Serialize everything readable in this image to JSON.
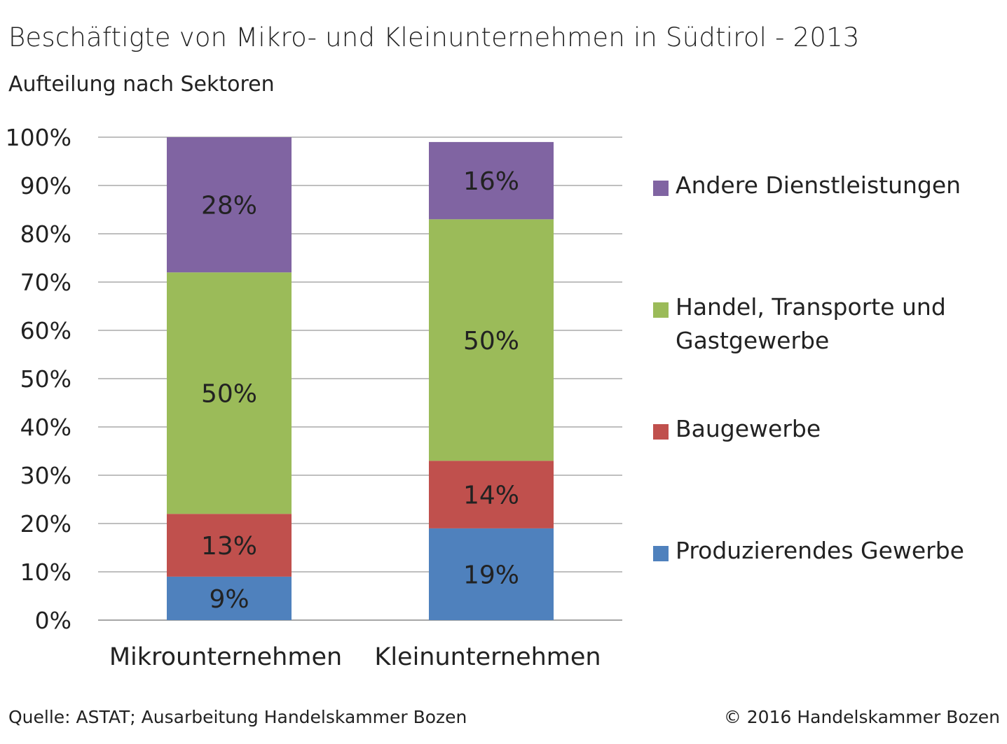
{
  "title": "Beschäftigte von Mikro- und Kleinunternehmen in Südtirol - 2013",
  "subtitle": "Aufteilung nach Sektoren",
  "footer": {
    "source": "Quelle: ASTAT; Ausarbeitung Handelskammer Bozen",
    "copyright": "© 2016 Handelskammer Bozen"
  },
  "chart_data": {
    "type": "bar",
    "stacked": true,
    "percent_stacked": true,
    "categories": [
      "Mikrounternehmen",
      "Kleinunternehmen"
    ],
    "series": [
      {
        "name": "Produzierendes Gewerbe",
        "values": [
          9,
          19
        ],
        "labels": [
          "9%",
          "19%"
        ],
        "color": "#4f81bd"
      },
      {
        "name": "Baugewerbe",
        "values": [
          13,
          14
        ],
        "labels": [
          "13%",
          "14%"
        ],
        "color": "#c0504d"
      },
      {
        "name": "Handel, Transporte und Gastgewerbe",
        "values": [
          50,
          50
        ],
        "labels": [
          "50%",
          "50%"
        ],
        "color": "#9bbb59"
      },
      {
        "name": "Andere Dienstleistungen",
        "values": [
          28,
          16
        ],
        "labels": [
          "28%",
          "16%"
        ],
        "color": "#8064a2"
      }
    ],
    "y_ticks": [
      "0%",
      "10%",
      "20%",
      "30%",
      "40%",
      "50%",
      "60%",
      "70%",
      "80%",
      "90%",
      "100%"
    ],
    "ylim": [
      0,
      100
    ],
    "grid": true,
    "legend_position": "right"
  }
}
